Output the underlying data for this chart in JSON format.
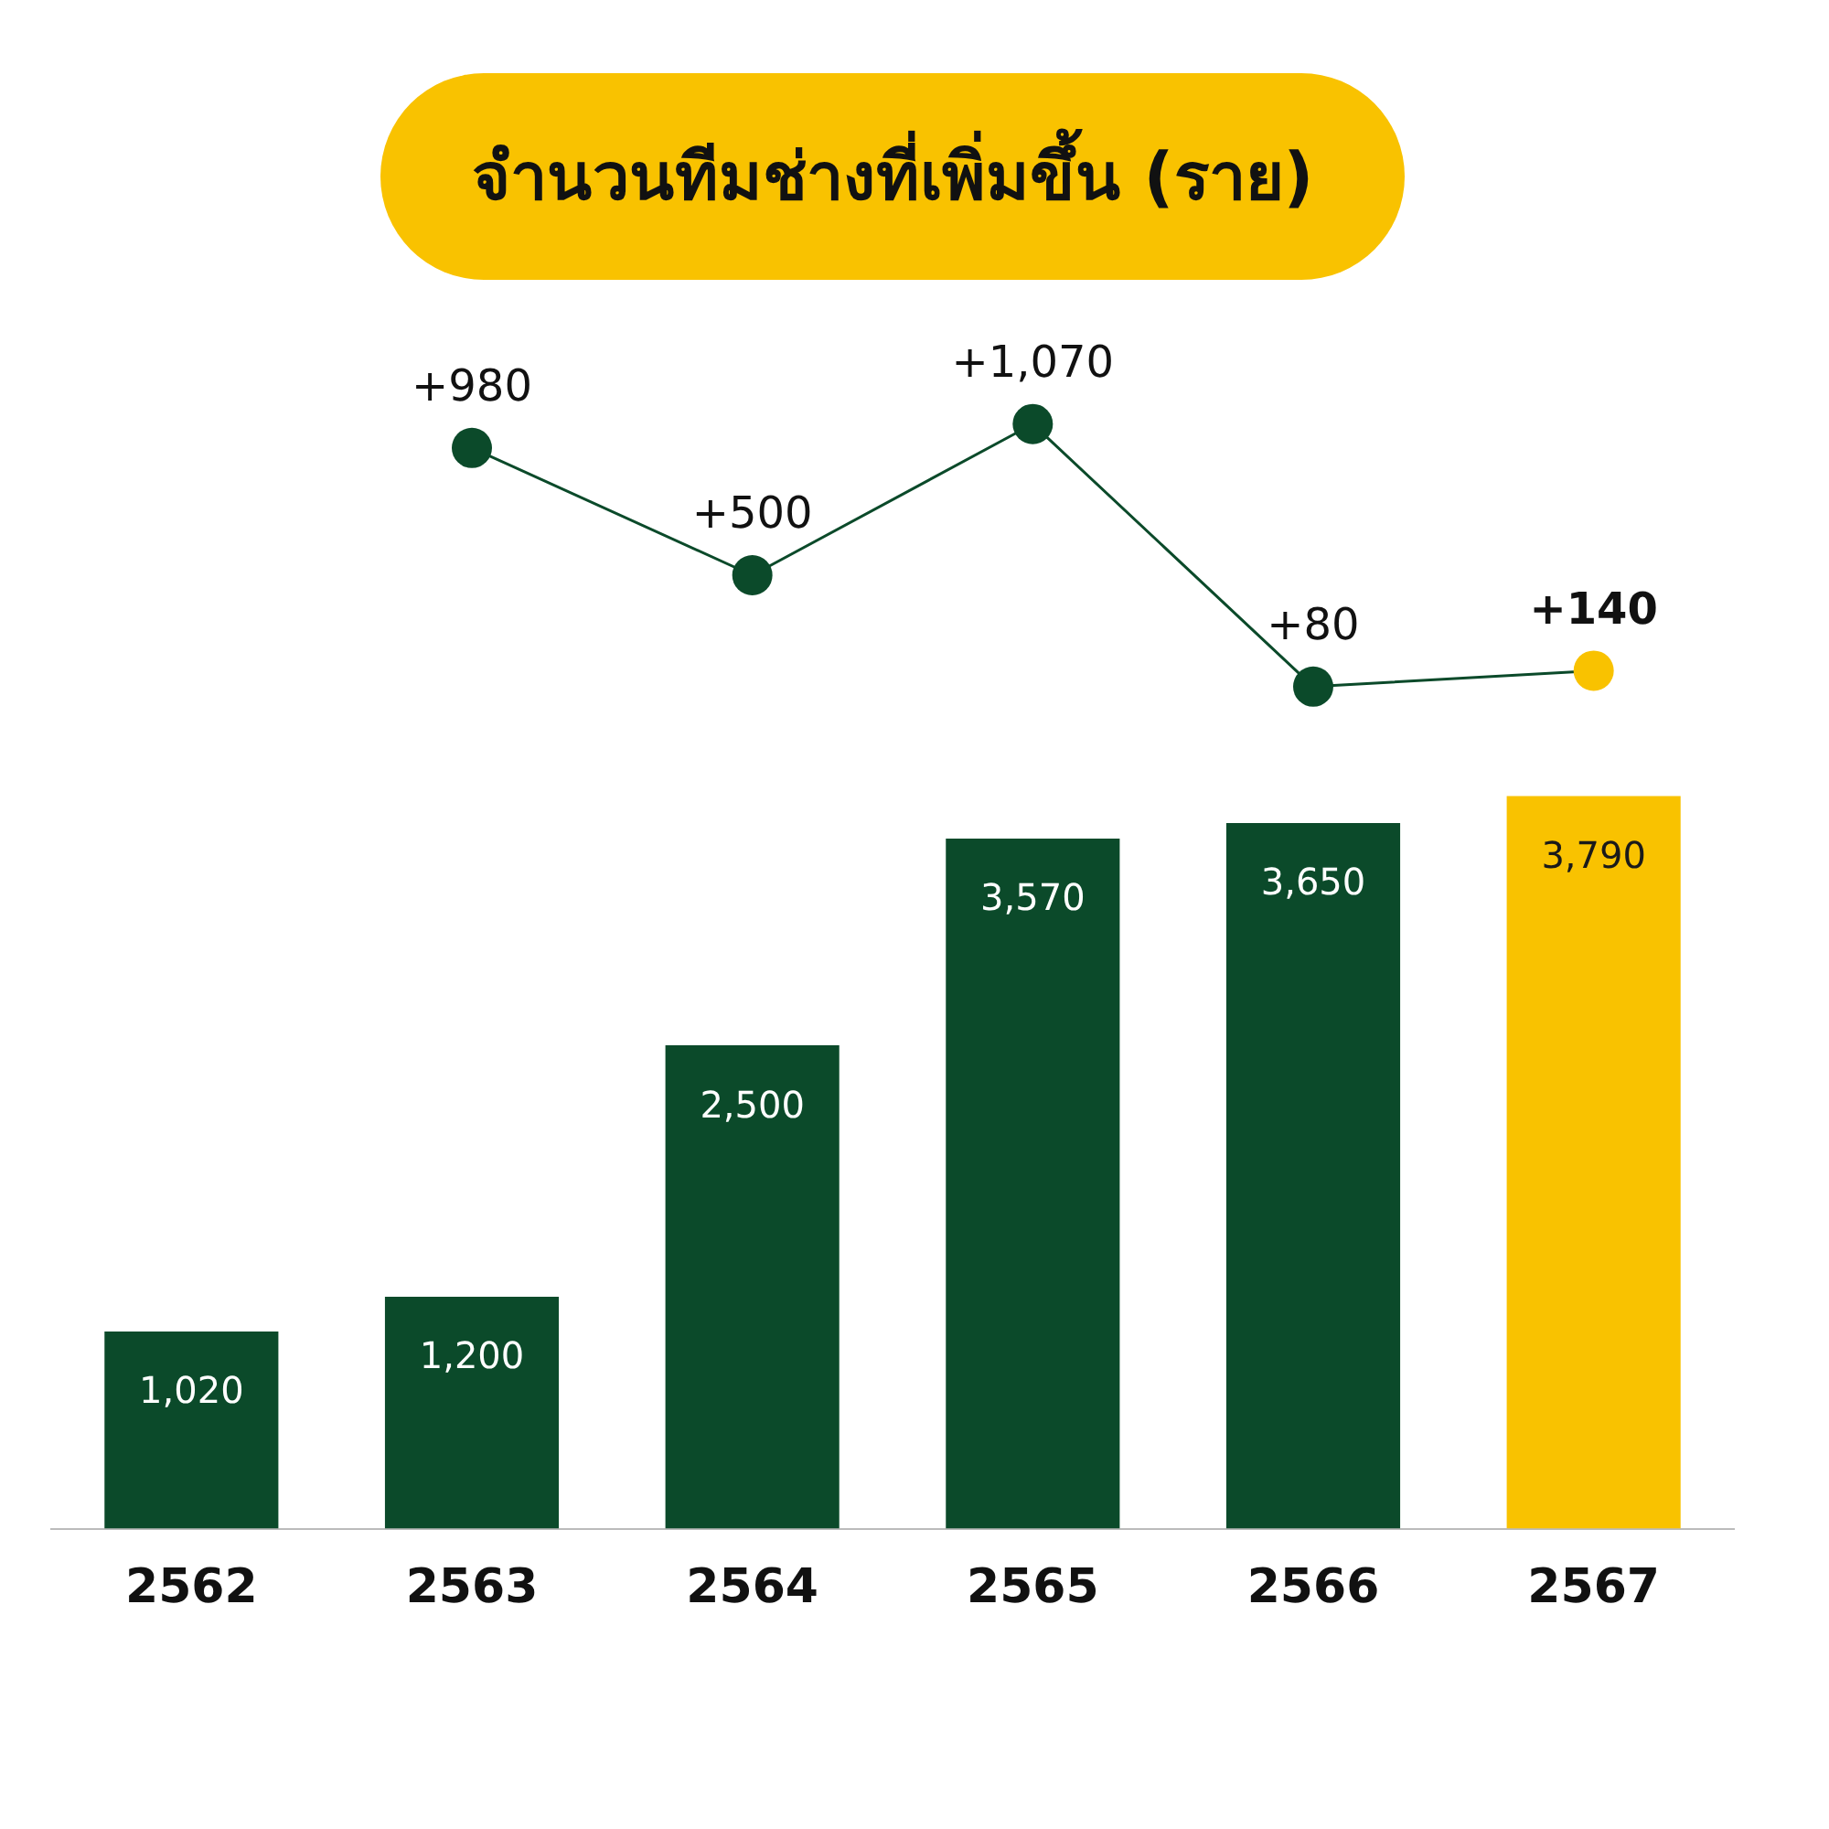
{
  "chart_data": [
    {
      "type": "line",
      "title": "จำนวนทีมช่างที่เพิ่มขึ้น (ราย)",
      "categories": [
        "2562",
        "2563",
        "2564",
        "2565",
        "2566",
        "2567"
      ],
      "values": [
        null,
        980,
        500,
        1070,
        80,
        140
      ],
      "value_labels": [
        null,
        "+980",
        "+500",
        "+1,070",
        "+80",
        "+140"
      ],
      "color": "#0b4a2a",
      "colors": [
        "#0b4a2a",
        "#0b4a2a",
        "#0b4a2a",
        "#0b4a2a",
        "#0b4a2a",
        "#f9c200"
      ],
      "tick_labels": false,
      "grid": false,
      "legend": false,
      "marker": "circle",
      "line_style": "solid"
    },
    {
      "type": "bar",
      "categories": [
        "2562",
        "2563",
        "2564",
        "2565",
        "2566",
        "2567"
      ],
      "values": [
        1020,
        1200,
        2500,
        3570,
        3650,
        3790
      ],
      "value_labels": [
        "1,020",
        "1,200",
        "2,500",
        "3,570",
        "3,650",
        "3,790"
      ],
      "colors": [
        "#0b4a2a",
        "#0b4a2a",
        "#0b4a2a",
        "#0b4a2a",
        "#0b4a2a",
        "#f9c200"
      ],
      "tick_labels": "x",
      "grid": false,
      "legend": false
    }
  ]
}
